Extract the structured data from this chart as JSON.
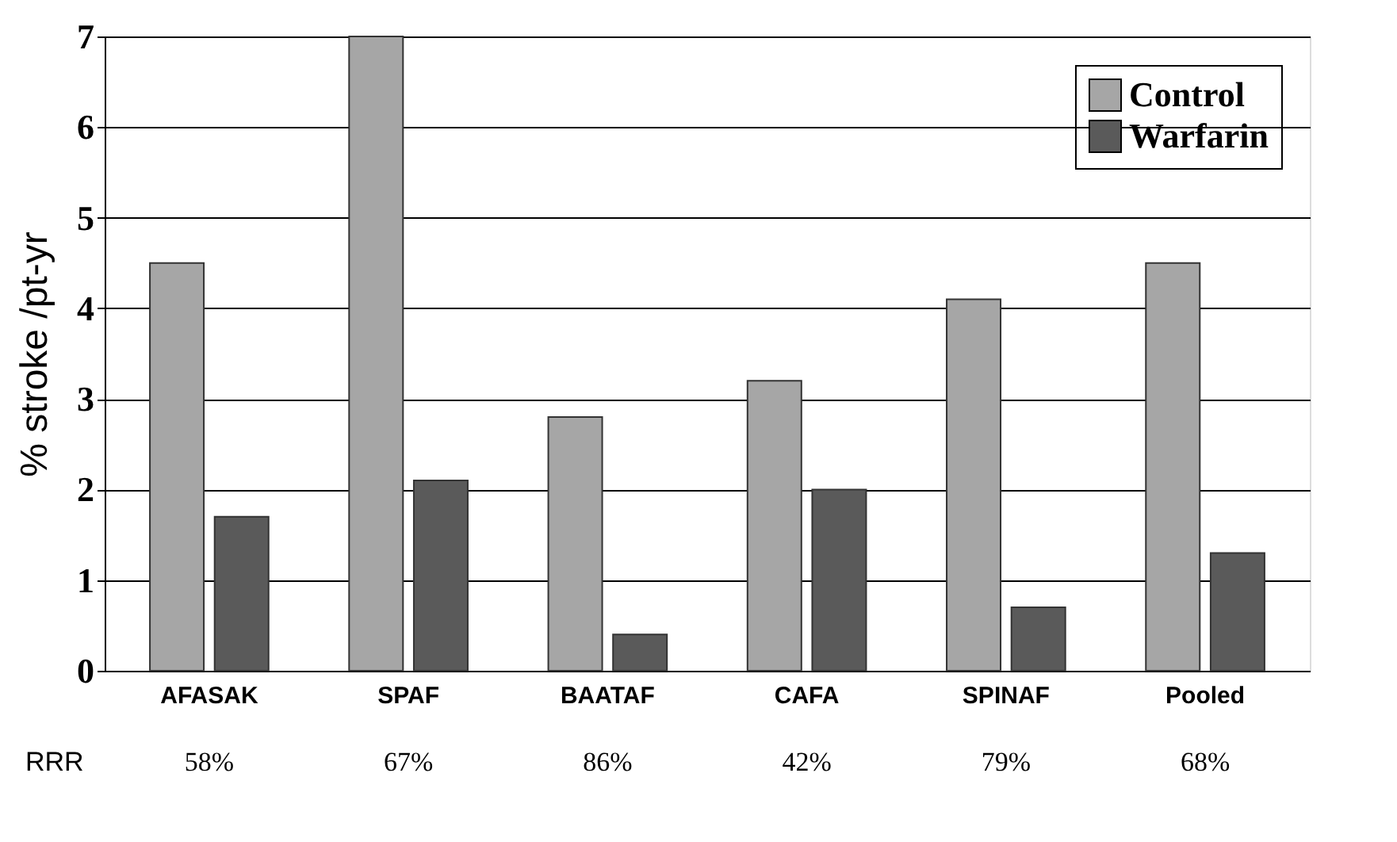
{
  "chart_data": {
    "type": "bar",
    "ylabel": "% stroke /pt-yr",
    "categories": [
      "AFASAK",
      "SPAF",
      "BAATAF",
      "CAFA",
      "SPINAF",
      "Pooled"
    ],
    "series": [
      {
        "name": "Control",
        "color": "#a6a6a6",
        "values": [
          4.5,
          7.0,
          2.8,
          3.2,
          4.1,
          4.5
        ]
      },
      {
        "name": "Warfarin",
        "color": "#5a5a5a",
        "values": [
          1.7,
          2.1,
          0.4,
          2.0,
          0.7,
          1.3
        ]
      }
    ],
    "ylim": [
      0,
      7
    ],
    "yticks": [
      0,
      1,
      2,
      3,
      4,
      5,
      6,
      7
    ],
    "grid": "y",
    "legend": "top right",
    "annotations": [
      "RRR",
      "58%",
      "67%",
      "86%",
      "42%",
      "79%",
      "68%"
    ]
  }
}
